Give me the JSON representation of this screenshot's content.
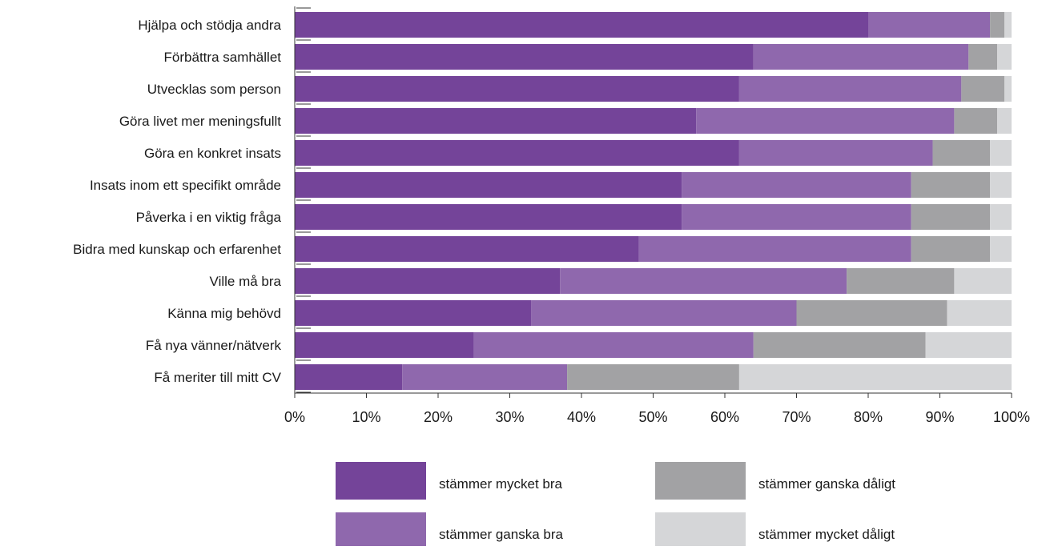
{
  "chart_data": {
    "type": "bar",
    "orientation": "horizontal",
    "stacked": true,
    "categories": [
      "Hjälpa och stödja andra",
      "Förbättra samhället",
      "Utvecklas som person",
      "Göra livet mer meningsfullt",
      "Göra en konkret insats",
      "Insats inom ett specifikt område",
      "Påverka i en viktig fråga",
      "Bidra med kunskap och erfarenhet",
      "Ville må bra",
      "Känna mig behövd",
      "Få nya vänner/nätverk",
      "Få meriter till mitt CV"
    ],
    "series": [
      {
        "name": "stämmer mycket bra",
        "color": "#744499",
        "values": [
          80,
          64,
          62,
          56,
          62,
          54,
          54,
          48,
          37,
          33,
          25,
          15
        ]
      },
      {
        "name": "stämmer ganska bra",
        "color": "#8f68ad",
        "values": [
          17,
          30,
          31,
          36,
          27,
          32,
          32,
          38,
          40,
          37,
          39,
          23
        ]
      },
      {
        "name": "stämmer ganska dåligt",
        "color": "#a2a2a4",
        "values": [
          2,
          4,
          6,
          6,
          8,
          11,
          11,
          11,
          15,
          21,
          24,
          24
        ]
      },
      {
        "name": "stämmer mycket dåligt",
        "color": "#d5d6d8",
        "values": [
          1,
          2,
          1,
          2,
          3,
          3,
          3,
          3,
          8,
          9,
          12,
          38
        ]
      }
    ],
    "xlim": [
      0,
      100
    ],
    "x_ticks": [
      "0%",
      "10%",
      "20%",
      "30%",
      "40%",
      "50%",
      "60%",
      "70%",
      "80%",
      "90%",
      "100%"
    ],
    "grid": false,
    "legend_position": "bottom"
  }
}
